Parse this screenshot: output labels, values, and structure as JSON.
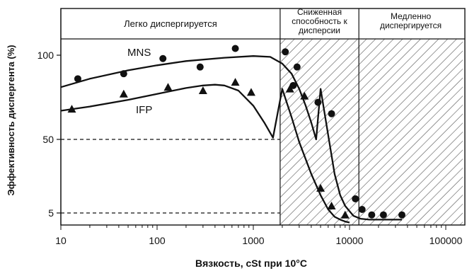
{
  "chart_data": {
    "type": "scatter",
    "title": "",
    "xlabel": "Вязкость, cSt при 10°C",
    "ylabel": "Эффективность диспергента (%)",
    "x_scale": "log",
    "xlim": [
      10,
      150000
    ],
    "xticks": [
      10,
      100,
      1000,
      10000,
      100000
    ],
    "xtick_labels": [
      "10",
      "100",
      "1000",
      "10000",
      "100000"
    ],
    "yticks": [
      {
        "value": 100,
        "label": "100"
      },
      {
        "value": 50,
        "label": "50"
      },
      {
        "value": 5,
        "label": "5"
      }
    ],
    "reference_lines": [
      50,
      5
    ],
    "grid": false,
    "zones": [
      {
        "label": "Легко диспергируется",
        "x_from": 10,
        "x_to": 1900,
        "hatched": false
      },
      {
        "label": "Сниженная способность к дисперсии",
        "x_from": 1900,
        "x_to": 12500,
        "hatched": true
      },
      {
        "label": "Медленно диспергируется",
        "x_from": 12500,
        "x_to": 150000,
        "hatched": true
      }
    ],
    "series": [
      {
        "name": "MNS",
        "marker": "circle",
        "points": [
          [
            15,
            86
          ],
          [
            45,
            89
          ],
          [
            115,
            98
          ],
          [
            280,
            93
          ],
          [
            650,
            104
          ],
          [
            2150,
            102
          ],
          [
            2850,
            93
          ],
          [
            2600,
            82
          ],
          [
            4700,
            72
          ],
          [
            6500,
            33
          ],
          [
            11500,
            9
          ],
          [
            13500,
            6
          ],
          [
            17000,
            4
          ],
          [
            22500,
            4
          ],
          [
            35000,
            4
          ]
        ],
        "curve": [
          [
            10,
            81
          ],
          [
            20,
            86
          ],
          [
            50,
            91
          ],
          [
            100,
            94
          ],
          [
            200,
            96.5
          ],
          [
            500,
            98.5
          ],
          [
            1000,
            99.5
          ],
          [
            1500,
            99
          ],
          [
            2000,
            95
          ],
          [
            2500,
            89
          ],
          [
            3000,
            80
          ],
          [
            3500,
            70
          ],
          [
            4000,
            60
          ],
          [
            4500,
            50
          ],
          [
            5000,
            40
          ],
          [
            6000,
            27
          ],
          [
            7000,
            16
          ],
          [
            8000,
            10
          ],
          [
            9000,
            7
          ],
          [
            10000,
            5.5
          ],
          [
            11000,
            3.5
          ],
          [
            13000,
            2
          ],
          [
            16000,
            1.5
          ],
          [
            20000,
            1.5
          ],
          [
            25000,
            1.5
          ],
          [
            35000,
            1.5
          ]
        ]
      },
      {
        "name": "IFP",
        "marker": "triangle",
        "points": [
          [
            13,
            68
          ],
          [
            45,
            77
          ],
          [
            130,
            81
          ],
          [
            300,
            79
          ],
          [
            650,
            84
          ],
          [
            950,
            78
          ],
          [
            2400,
            40
          ],
          [
            3400,
            38
          ],
          [
            5000,
            12
          ],
          [
            6500,
            7
          ],
          [
            9000,
            4
          ]
        ],
        "curve": [
          [
            10,
            67
          ],
          [
            20,
            69.5
          ],
          [
            50,
            73.5
          ],
          [
            100,
            77
          ],
          [
            200,
            80.5
          ],
          [
            300,
            82
          ],
          [
            400,
            82.5
          ],
          [
            500,
            82
          ],
          [
            700,
            79
          ],
          [
            1000,
            70
          ],
          [
            1300,
            60
          ],
          [
            1600,
            51
          ],
          [
            2000,
            40
          ],
          [
            2500,
            32
          ],
          [
            3000,
            25
          ],
          [
            4000,
            16
          ],
          [
            5000,
            10
          ],
          [
            6000,
            6
          ],
          [
            7000,
            3
          ],
          [
            8000,
            1.5
          ],
          [
            9000,
            0.5
          ],
          [
            10000,
            0
          ]
        ]
      }
    ]
  }
}
